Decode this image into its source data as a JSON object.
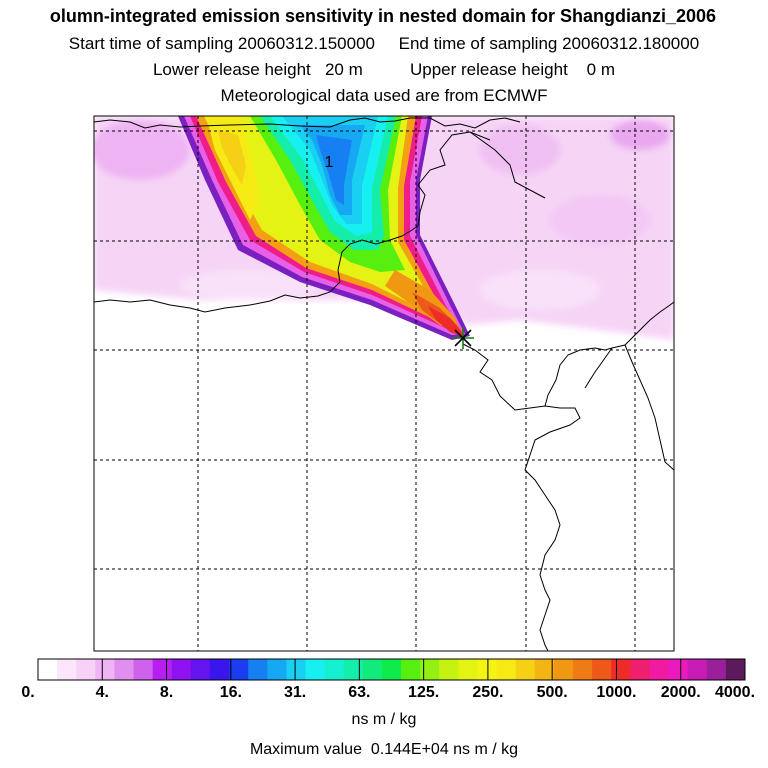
{
  "header": {
    "title": "olumn-integrated emission sensitivity in nested domain for Shangdianzi_2006",
    "sampling_line": "Start time of sampling 20060312.150000     End time of sampling 20060312.180000",
    "release_line": "Lower release height   20 m          Upper release height    0 m",
    "met_line": "Meteorological data used are from ECMWF"
  },
  "map": {
    "contour_label": "1",
    "receptor_marker": "star-cross"
  },
  "colorbar": {
    "tick_labels": [
      "0.",
      "4.",
      "8.",
      "16.",
      "31.",
      "63.",
      "125.",
      "250.",
      "500.",
      "1000.",
      "2000.",
      "4000."
    ],
    "colors": [
      "#ffffff",
      "#fbe6fb",
      "#f6d2f7",
      "#eeb4f3",
      "#e08ef0",
      "#cf62ec",
      "#b71ff0",
      "#8e13f0",
      "#6414ef",
      "#3b16ec",
      "#1a3df0",
      "#1680f2",
      "#17a8f3",
      "#1ad0f2",
      "#17f0f0",
      "#15f0d0",
      "#15eeab",
      "#12eb7b",
      "#10eb4c",
      "#56ef10",
      "#93f012",
      "#c6f213",
      "#e5f314",
      "#f4f414",
      "#f5ea14",
      "#f5d014",
      "#f3b414",
      "#f09714",
      "#ef7b16",
      "#ee5818",
      "#ed2c2a",
      "#f01f6d",
      "#f01aa3",
      "#ea1abe",
      "#c81ab4",
      "#9a1f9a",
      "#5c1a5c"
    ],
    "units": "ns m / kg"
  },
  "footer": {
    "max_value": "Maximum value  0.144E+04 ns m / kg"
  },
  "colors": {
    "coast": "#000000",
    "grid": "#000000",
    "background_sensitivity": "#f5ccf5"
  }
}
